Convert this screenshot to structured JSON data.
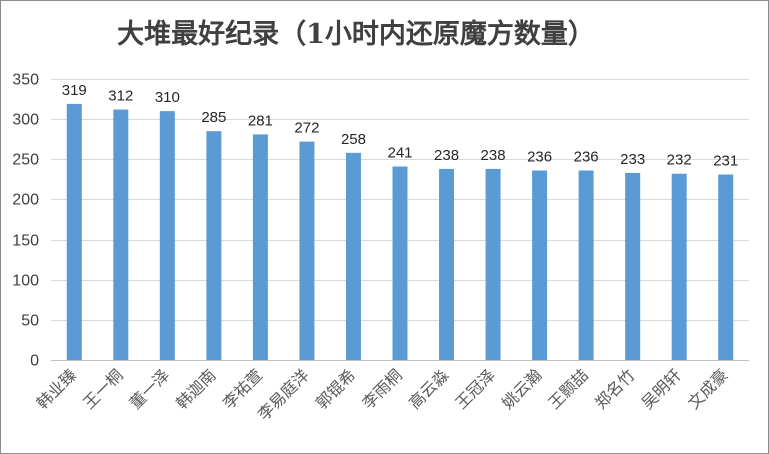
{
  "chart_data": {
    "type": "bar",
    "title": "大堆最好纪录（1小时内还原魔方数量）",
    "categories": [
      "韩业臻",
      "王一桐",
      "董一泽",
      "韩迦南",
      "李祐萱",
      "李易庭洋",
      "郭锟希",
      "李雨桐",
      "高云淼",
      "王冠泽",
      "姚云瀚",
      "王颢喆",
      "郑名竹",
      "吴明轩",
      "文成豪"
    ],
    "values": [
      319,
      312,
      310,
      285,
      281,
      272,
      258,
      241,
      238,
      238,
      236,
      236,
      233,
      232,
      231
    ],
    "ylim": [
      0,
      350
    ],
    "yticks": [
      0,
      50,
      100,
      150,
      200,
      250,
      300,
      350
    ],
    "grid": true,
    "legend": "none",
    "bar_color": "#5b9bd5",
    "grid_color": "#d9d9d9"
  }
}
